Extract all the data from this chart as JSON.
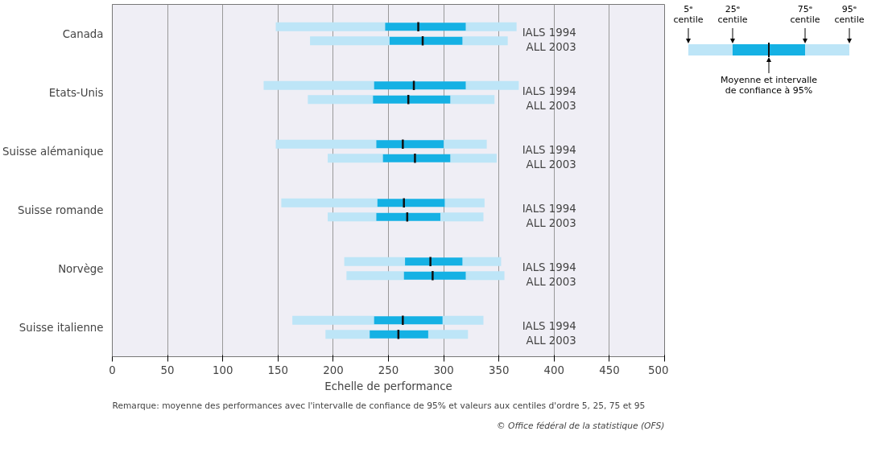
{
  "chart_data": {
    "type": "box",
    "orientation": "horizontal",
    "xlabel": "Echelle de performance",
    "categories": [
      "Canada",
      "Etats-Unis",
      "Suisse alémanique",
      "Suisse romande",
      "Norvège",
      "Suisse italienne"
    ],
    "xlim": [
      0,
      500
    ],
    "xticks": [
      0,
      50,
      100,
      150,
      200,
      250,
      300,
      350,
      400,
      450,
      500
    ],
    "grid": "x",
    "colors": [
      "#bde5f7",
      "#111111"
    ],
    "series": [
      {
        "name": "IALS 1994",
        "color": "#15b1e4",
        "boxes": [
          {
            "low": 148,
            "q1": 247,
            "median": 277,
            "q3": 320,
            "high": 366
          },
          {
            "low": 137,
            "q1": 237,
            "median": 273,
            "q3": 320,
            "high": 368
          },
          {
            "low": 148,
            "q1": 239,
            "median": 263,
            "q3": 300,
            "high": 339
          },
          {
            "low": 153,
            "q1": 240,
            "median": 264,
            "q3": 301,
            "high": 337
          },
          {
            "low": 210,
            "q1": 265,
            "median": 288,
            "q3": 317,
            "high": 352
          },
          {
            "low": 163,
            "q1": 237,
            "median": 263,
            "q3": 299,
            "high": 336
          }
        ]
      },
      {
        "name": "ALL 2003",
        "color": "#15b1e4",
        "boxes": [
          {
            "low": 179,
            "q1": 251,
            "median": 281,
            "q3": 317,
            "high": 358
          },
          {
            "low": 177,
            "q1": 236,
            "median": 268,
            "q3": 306,
            "high": 346
          },
          {
            "low": 195,
            "q1": 245,
            "median": 274,
            "q3": 306,
            "high": 348
          },
          {
            "low": 195,
            "q1": 239,
            "median": 267,
            "q3": 297,
            "high": 336
          },
          {
            "low": 212,
            "q1": 264,
            "median": 290,
            "q3": 320,
            "high": 355
          },
          {
            "low": 193,
            "q1": 233,
            "median": 259,
            "q3": 286,
            "high": 322
          }
        ]
      }
    ],
    "annotations": [
      "5ᵉ centile",
      "25ᵉ centile",
      "75ᵉ centile",
      "95ᵉ centile",
      "Moyenne et intervalle de confiance à 95%",
      "Remarque: moyenne des performances avec l'intervalle de confiance de 95% et valeurs aux centiles d'ordre 5, 25, 75 et 95",
      "© Office fédéral de la statistique (OFS)"
    ]
  }
}
